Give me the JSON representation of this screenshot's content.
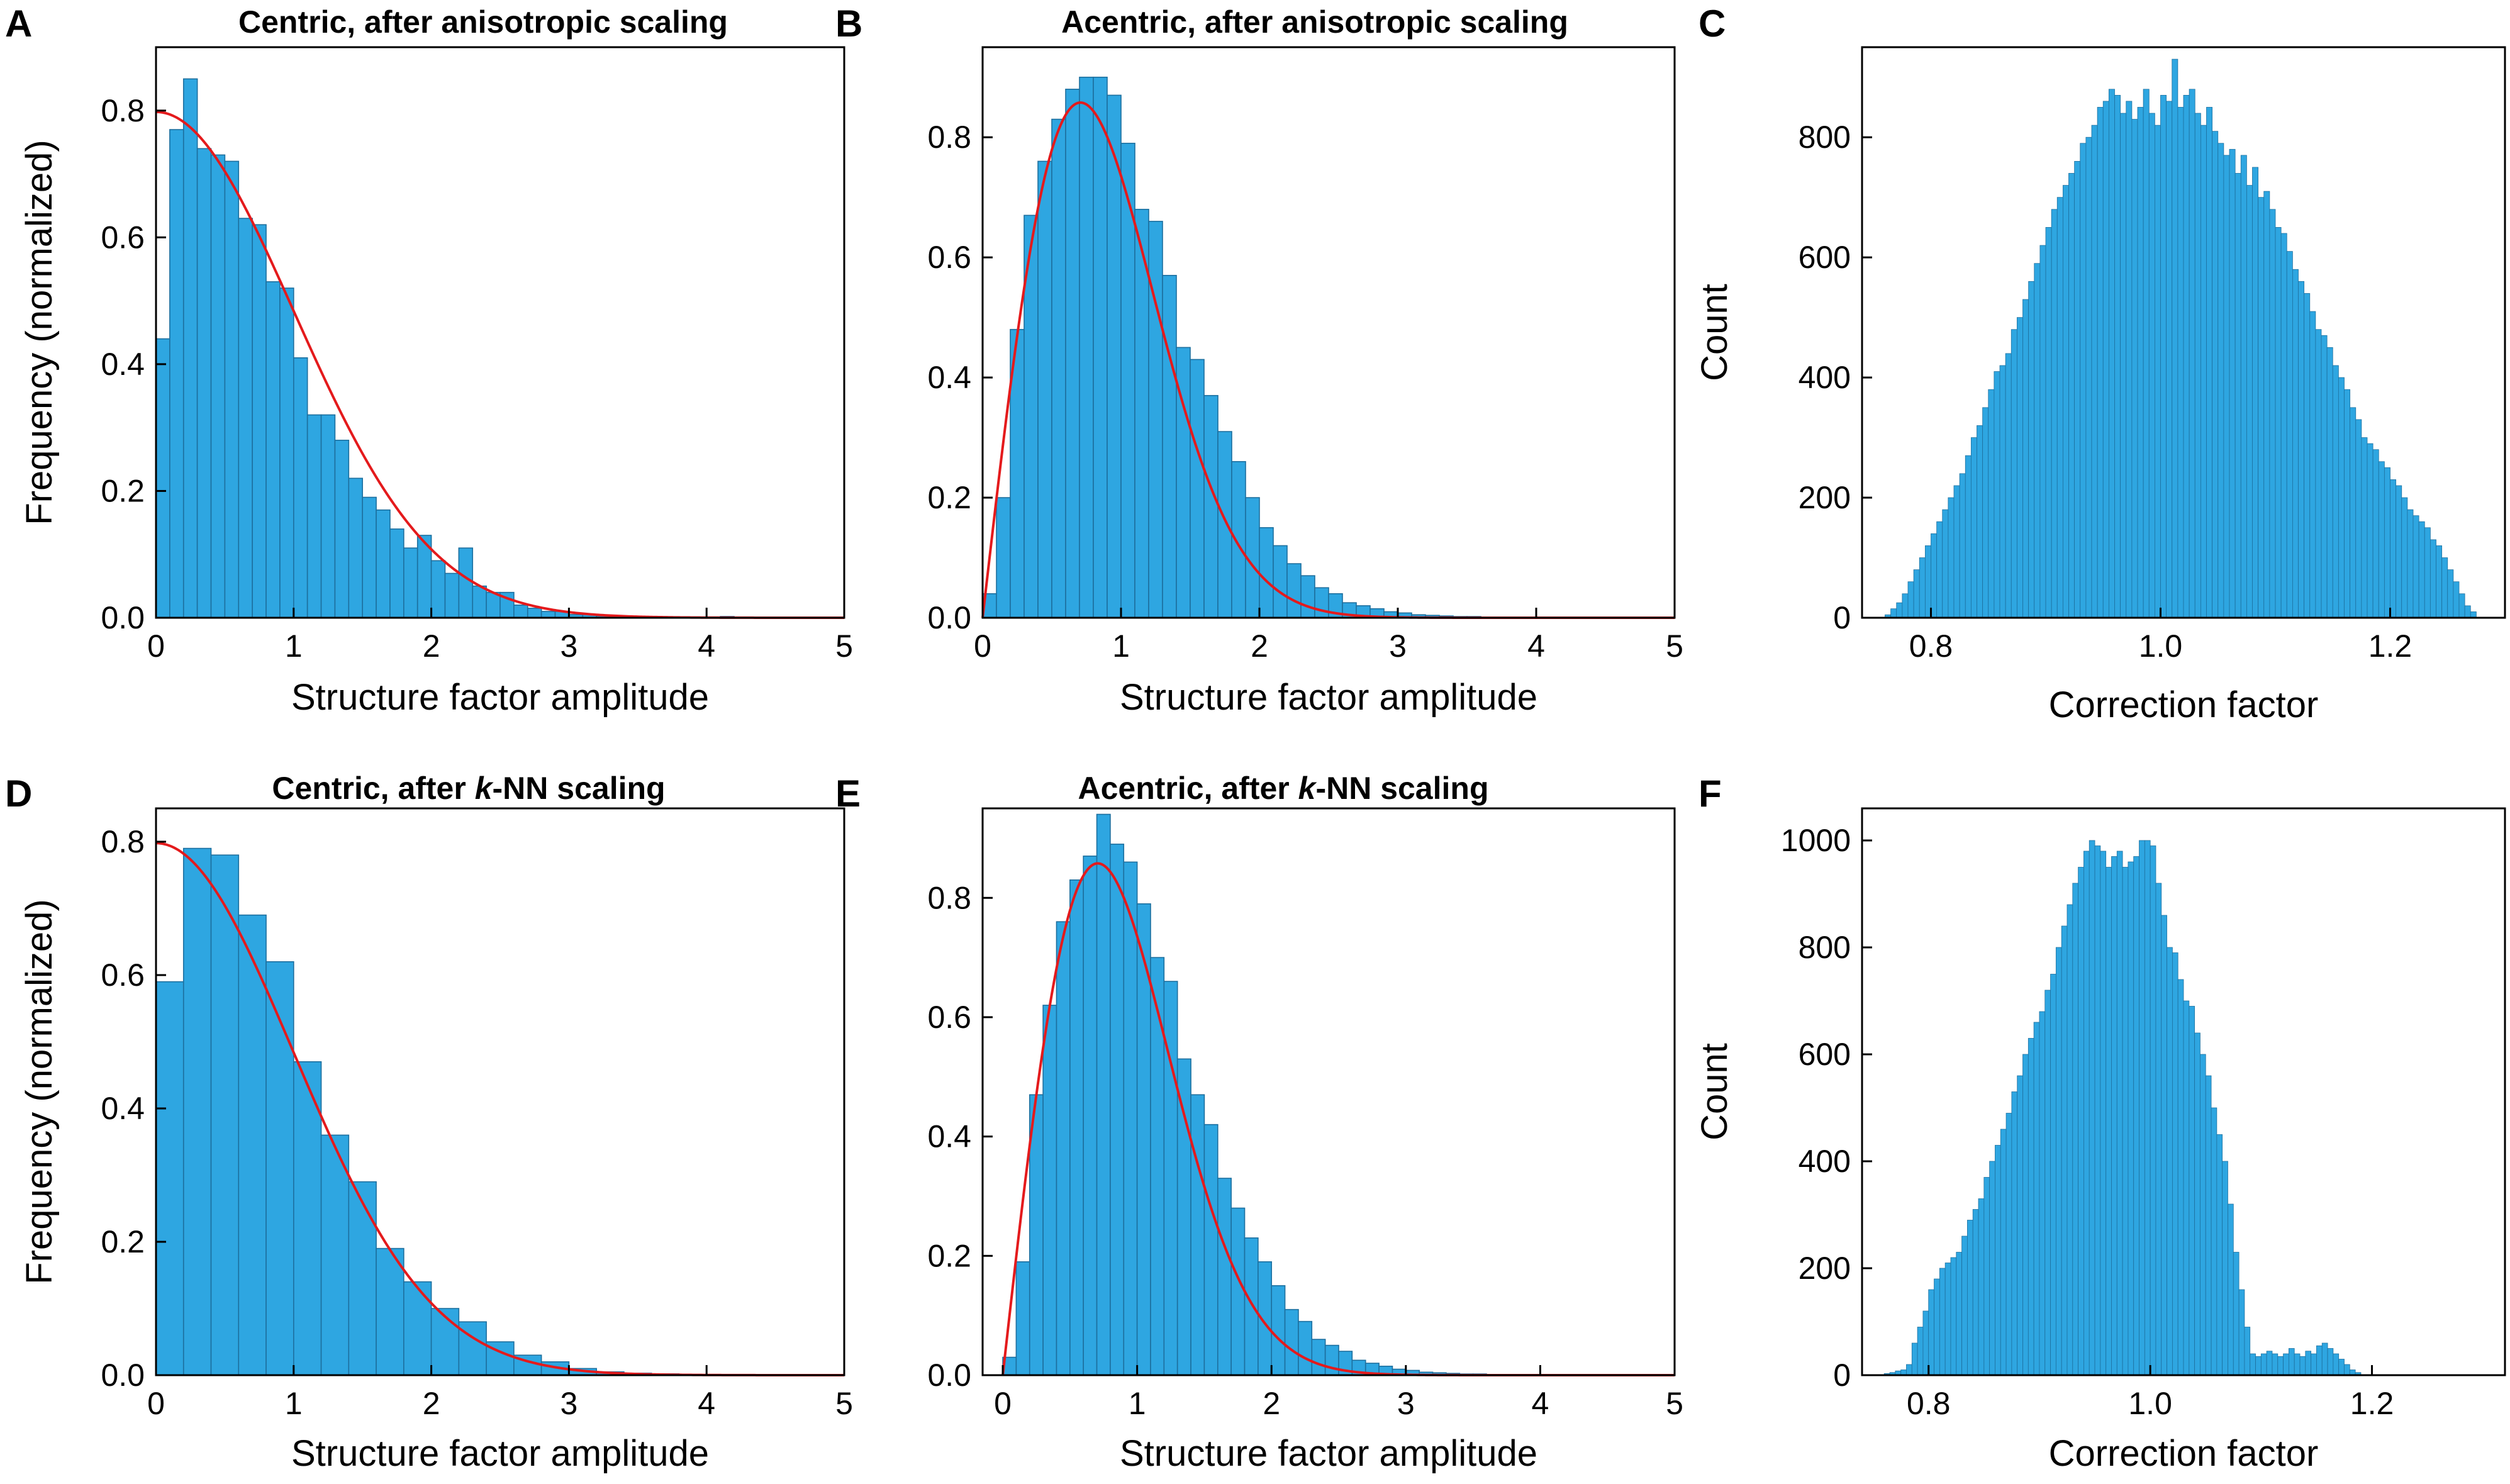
{
  "colors": {
    "bar_fill": "#2ea6e1",
    "bar_edge": "#1d6f9e",
    "fit_line": "#e41a1c",
    "axis": "#000000"
  },
  "panels": [
    {
      "letter": "A",
      "title": "Centric, after anisotropic scaling"
    },
    {
      "letter": "B",
      "title": "Acentric, after anisotropic scaling"
    },
    {
      "letter": "C",
      "title": ""
    },
    {
      "letter": "D",
      "title_pre": "Centric, after ",
      "title_em": "k",
      "title_post": "-NN scaling"
    },
    {
      "letter": "E",
      "title_pre": "Acentric, after ",
      "title_em": "k",
      "title_post": "-NN scaling"
    },
    {
      "letter": "F",
      "title": ""
    }
  ],
  "chart_data": [
    {
      "panel": "A",
      "type": "bar",
      "title": "Centric, after anisotropic scaling",
      "xlabel": "Structure factor amplitude",
      "ylabel": "Frequency (normalized)",
      "xlim": [
        0,
        5
      ],
      "ylim": [
        0,
        0.9
      ],
      "xticks": [
        0,
        1,
        2,
        3,
        4,
        5
      ],
      "yticks": [
        0.0,
        0.2,
        0.4,
        0.6,
        0.8
      ],
      "bin_start": 0,
      "bin_width": 0.1,
      "values": [
        0.44,
        0.77,
        0.85,
        0.74,
        0.73,
        0.72,
        0.63,
        0.62,
        0.53,
        0.52,
        0.41,
        0.32,
        0.32,
        0.28,
        0.22,
        0.19,
        0.17,
        0.14,
        0.11,
        0.13,
        0.09,
        0.07,
        0.11,
        0.05,
        0.04,
        0.04,
        0.02,
        0.015,
        0.01,
        0.01,
        0.005,
        0.005,
        0.003,
        0.002,
        0.002,
        0.001,
        0.001,
        0.001,
        0.001,
        0.001,
        0.001,
        0.002,
        0.001
      ],
      "fit_curve": "centric Wilson distribution"
    },
    {
      "panel": "B",
      "type": "bar",
      "title": "Acentric, after anisotropic scaling",
      "xlabel": "Structure factor amplitude",
      "ylabel": "",
      "xlim": [
        0,
        5
      ],
      "ylim": [
        0,
        0.95
      ],
      "xticks": [
        0,
        1,
        2,
        3,
        4,
        5
      ],
      "yticks": [
        0.0,
        0.2,
        0.4,
        0.6,
        0.8
      ],
      "bin_start": 0,
      "bin_width": 0.1,
      "values": [
        0.04,
        0.2,
        0.48,
        0.67,
        0.76,
        0.83,
        0.88,
        0.9,
        0.9,
        0.87,
        0.79,
        0.68,
        0.66,
        0.57,
        0.45,
        0.43,
        0.37,
        0.31,
        0.26,
        0.2,
        0.15,
        0.12,
        0.09,
        0.07,
        0.05,
        0.04,
        0.025,
        0.02,
        0.015,
        0.01,
        0.008,
        0.005,
        0.004,
        0.003,
        0.002,
        0.002,
        0.001,
        0.001,
        0.001,
        0.001
      ],
      "fit_curve": "acentric Wilson distribution"
    },
    {
      "panel": "C",
      "type": "bar",
      "title": "",
      "xlabel": "Correction factor",
      "ylabel": "Count",
      "xlim": [
        0.74,
        1.3
      ],
      "ylim": [
        0,
        950
      ],
      "xticks": [
        0.8,
        1.0,
        1.2
      ],
      "yticks": [
        0,
        200,
        400,
        600,
        800
      ],
      "bin_start": 0.76,
      "bin_width": 0.005,
      "values": [
        5,
        15,
        25,
        40,
        60,
        80,
        100,
        120,
        140,
        160,
        180,
        200,
        220,
        240,
        270,
        300,
        320,
        350,
        380,
        410,
        420,
        440,
        480,
        500,
        530,
        560,
        590,
        620,
        650,
        680,
        700,
        720,
        740,
        760,
        790,
        800,
        820,
        850,
        860,
        880,
        870,
        840,
        860,
        830,
        850,
        880,
        840,
        820,
        870,
        860,
        930,
        850,
        870,
        880,
        840,
        820,
        850,
        810,
        790,
        770,
        780,
        740,
        770,
        720,
        750,
        700,
        710,
        680,
        650,
        640,
        610,
        580,
        560,
        540,
        510,
        480,
        470,
        450,
        420,
        400,
        380,
        350,
        330,
        300,
        290,
        280,
        260,
        250,
        230,
        220,
        200,
        180,
        170,
        160,
        150,
        130,
        120,
        100,
        80,
        60,
        40,
        20,
        10
      ]
    },
    {
      "panel": "D",
      "type": "bar",
      "title": "Centric, after k-NN scaling",
      "xlabel": "Structure factor amplitude",
      "ylabel": "Frequency (normalized)",
      "xlim": [
        0,
        5
      ],
      "ylim": [
        0,
        0.85
      ],
      "xticks": [
        0,
        1,
        2,
        3,
        4,
        5
      ],
      "yticks": [
        0.0,
        0.2,
        0.4,
        0.6,
        0.8
      ],
      "bin_start": 0,
      "bin_width": 0.2,
      "values": [
        0.59,
        0.79,
        0.78,
        0.69,
        0.62,
        0.47,
        0.36,
        0.29,
        0.19,
        0.14,
        0.1,
        0.08,
        0.05,
        0.03,
        0.02,
        0.01,
        0.005,
        0.003,
        0.002,
        0.001,
        0.001
      ],
      "fit_curve": "centric Wilson distribution"
    },
    {
      "panel": "E",
      "type": "bar",
      "title": "Acentric, after k-NN scaling",
      "xlabel": "Structure factor amplitude",
      "ylabel": "",
      "xlim": [
        -0.15,
        5
      ],
      "ylim": [
        0,
        0.95
      ],
      "xticks": [
        0,
        1,
        2,
        3,
        4,
        5
      ],
      "yticks": [
        0.0,
        0.2,
        0.4,
        0.6,
        0.8
      ],
      "bin_start": 0,
      "bin_width": 0.1,
      "values": [
        0.03,
        0.19,
        0.47,
        0.62,
        0.76,
        0.83,
        0.87,
        0.94,
        0.89,
        0.86,
        0.79,
        0.7,
        0.66,
        0.53,
        0.47,
        0.42,
        0.33,
        0.28,
        0.23,
        0.19,
        0.15,
        0.11,
        0.09,
        0.06,
        0.05,
        0.04,
        0.025,
        0.02,
        0.015,
        0.01,
        0.008,
        0.005,
        0.004,
        0.003,
        0.002,
        0.002,
        0.001,
        0.001,
        0.001,
        0.001
      ],
      "fit_curve": "acentric Wilson distribution"
    },
    {
      "panel": "F",
      "type": "bar",
      "title": "",
      "xlabel": "Correction factor",
      "ylabel": "Count",
      "xlim": [
        0.74,
        1.32
      ],
      "ylim": [
        0,
        1060
      ],
      "xticks": [
        0.8,
        1.0,
        1.2
      ],
      "yticks": [
        0,
        200,
        400,
        600,
        800,
        1000
      ],
      "bin_start": 0.76,
      "bin_width": 0.005,
      "values": [
        3,
        5,
        8,
        10,
        20,
        60,
        90,
        120,
        160,
        180,
        200,
        210,
        220,
        230,
        260,
        290,
        310,
        330,
        370,
        400,
        430,
        460,
        490,
        530,
        560,
        600,
        630,
        660,
        680,
        720,
        750,
        800,
        840,
        880,
        920,
        950,
        980,
        1000,
        990,
        980,
        950,
        970,
        980,
        950,
        960,
        970,
        1000,
        1000,
        990,
        920,
        860,
        800,
        790,
        740,
        700,
        690,
        640,
        600,
        560,
        500,
        450,
        400,
        320,
        230,
        160,
        90,
        40,
        35,
        40,
        45,
        40,
        35,
        40,
        50,
        40,
        35,
        45,
        40,
        55,
        60,
        50,
        40,
        30,
        20,
        10,
        5
      ]
    }
  ]
}
